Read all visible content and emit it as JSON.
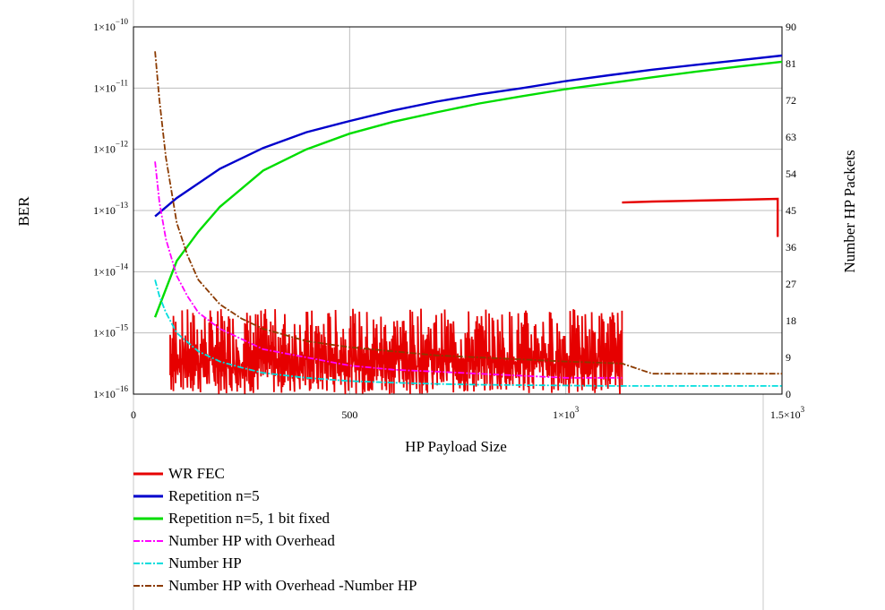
{
  "chart_data": {
    "type": "line",
    "title": "",
    "xlabel": "HP Payload Size",
    "ylabel": "BER",
    "y2label": "Number HP Packets",
    "xlim": [
      0,
      1500
    ],
    "ylim": [
      1e-16,
      1e-10
    ],
    "y2lim": [
      0,
      90
    ],
    "yscale": "log",
    "grid": true,
    "legend_placement": "below",
    "x_ticks": [
      {
        "value": 0,
        "base": "0",
        "exp": ""
      },
      {
        "value": 500,
        "base": "500",
        "exp": ""
      },
      {
        "value": 1000,
        "base": "1×10",
        "exp": "3"
      },
      {
        "value": 1500,
        "base": "1.5×10",
        "exp": "3"
      }
    ],
    "y_ticks": [
      {
        "value": 1e-10,
        "base": "1×10",
        "exp": "−10"
      },
      {
        "value": 1e-11,
        "base": "1×10",
        "exp": "−11"
      },
      {
        "value": 1e-12,
        "base": "1×10",
        "exp": "−12"
      },
      {
        "value": 1e-13,
        "base": "1×10",
        "exp": "−13"
      },
      {
        "value": 1e-14,
        "base": "1×10",
        "exp": "−14"
      },
      {
        "value": 1e-15,
        "base": "1×10",
        "exp": "−15"
      },
      {
        "value": 1e-16,
        "base": "1×10",
        "exp": "−16"
      }
    ],
    "y2_ticks": [
      "0",
      "9",
      "18",
      "27",
      "36",
      "45",
      "54",
      "63",
      "72",
      "81",
      "90"
    ],
    "series": [
      {
        "name": "WR FEC",
        "color": "#e60000",
        "dash": "solid",
        "axis": "left",
        "x": [
          1130,
          1200,
          1300,
          1400,
          1490,
          1490
        ],
        "y": [
          1.35e-13,
          1.4e-13,
          1.45e-13,
          1.5e-13,
          1.55e-13,
          3.7e-14
        ],
        "noisy_region": {
          "x_from": 85,
          "x_to": 1130,
          "y_low": 1e-16,
          "y_high": 2.5e-15
        }
      },
      {
        "name": "Repetition n=5",
        "color": "#0000cc",
        "dash": "solid",
        "axis": "left",
        "x": [
          50,
          100,
          200,
          300,
          400,
          500,
          600,
          700,
          800,
          900,
          1000,
          1100,
          1200,
          1300,
          1400,
          1500
        ],
        "y": [
          8e-14,
          1.6e-13,
          4.8e-13,
          1.05e-12,
          1.9e-12,
          2.9e-12,
          4.3e-12,
          6e-12,
          7.9e-12,
          1e-11,
          1.3e-11,
          1.62e-11,
          2e-11,
          2.4e-11,
          2.85e-11,
          3.4e-11
        ]
      },
      {
        "name": "Repetition n=5, 1 bit fixed",
        "color": "#00dd00",
        "dash": "solid",
        "axis": "left",
        "x": [
          50,
          100,
          150,
          200,
          300,
          400,
          500,
          600,
          700,
          800,
          900,
          1000,
          1100,
          1200,
          1300,
          1400,
          1500
        ],
        "y": [
          1.8e-15,
          1.5e-14,
          4.5e-14,
          1.15e-13,
          4.5e-13,
          1e-12,
          1.8e-12,
          2.8e-12,
          4e-12,
          5.6e-12,
          7.4e-12,
          9.6e-12,
          1.2e-11,
          1.5e-11,
          1.85e-11,
          2.25e-11,
          2.7e-11
        ]
      },
      {
        "name": "Number HP with Overhead",
        "color": "#ff00ff",
        "dash": "dashdot",
        "axis": "right",
        "x": [
          50,
          60,
          75,
          100,
          125,
          150,
          200,
          250,
          300,
          400,
          500,
          600,
          700,
          800,
          900,
          1000,
          1130
        ],
        "y": [
          57,
          47,
          38,
          29,
          24,
          20,
          16,
          13.5,
          11,
          9,
          7,
          6,
          5.5,
          5,
          4.5,
          4,
          4
        ]
      },
      {
        "name": "Number HP",
        "color": "#00dddd",
        "dash": "dashdot",
        "axis": "right",
        "x": [
          50,
          60,
          75,
          100,
          150,
          200,
          250,
          300,
          400,
          500,
          600,
          700,
          800,
          900,
          1000,
          1100,
          1200,
          1300,
          1400,
          1500
        ],
        "y": [
          28,
          24,
          20,
          15,
          10.5,
          8,
          6.5,
          5.2,
          4,
          3.2,
          2.8,
          2.5,
          2.3,
          2.2,
          2.1,
          2.0,
          2.0,
          2.0,
          2.0,
          2.0
        ]
      },
      {
        "name": "Number HP with Overhead -Number HP",
        "color": "#8b3a00",
        "dash": "dashdot",
        "axis": "right",
        "x": [
          50,
          60,
          75,
          100,
          125,
          150,
          200,
          250,
          300,
          350,
          400,
          500,
          600,
          700,
          800,
          900,
          1000,
          1130,
          1200,
          1300,
          1400,
          1500
        ],
        "y": [
          84,
          72,
          58,
          42,
          34,
          28,
          22,
          18.5,
          16,
          14.5,
          13,
          11.5,
          10.5,
          9.5,
          9,
          8.5,
          8,
          7.5,
          5,
          5,
          5,
          5
        ]
      }
    ]
  }
}
